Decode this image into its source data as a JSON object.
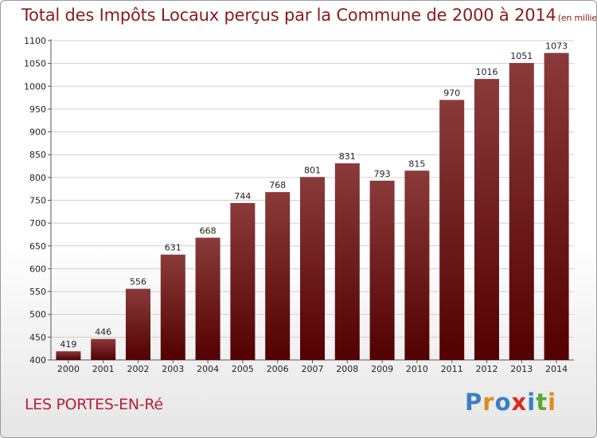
{
  "title": "Total des Impôts Locaux perçus par la Commune de 2000 à 2014",
  "title_unit": "(en milliers d'€)",
  "commune": "LES PORTES-EN-Ré",
  "logo": {
    "text": "Proxiti",
    "letters": [
      {
        "ch": "P",
        "color": "#3a7fc2"
      },
      {
        "ch": "r",
        "color": "#e08a1e"
      },
      {
        "ch": "o",
        "color": "#3a7fc2"
      },
      {
        "ch": "x",
        "color": "#d92a1c"
      },
      {
        "ch": "i",
        "color": "#3a7fc2"
      },
      {
        "ch": "t",
        "color": "#58a832"
      },
      {
        "ch": "i",
        "color": "#e08a1e"
      }
    ]
  },
  "colors": {
    "bar_top": "#8b3a3a",
    "bar_bottom": "#520000",
    "title": "#8b1a1a",
    "commune": "#b8203a"
  },
  "chart_data": {
    "type": "bar",
    "title": "Total des Impôts Locaux perçus par la Commune de 2000 à 2014",
    "xlabel": "",
    "ylabel": "",
    "categories": [
      "2000",
      "2001",
      "2002",
      "2003",
      "2004",
      "2005",
      "2006",
      "2007",
      "2008",
      "2009",
      "2010",
      "2011",
      "2012",
      "2013",
      "2014"
    ],
    "values": [
      419,
      446,
      556,
      631,
      668,
      744,
      768,
      801,
      831,
      793,
      815,
      970,
      1016,
      1051,
      1073
    ],
    "ylim": [
      400,
      1100
    ],
    "yticks": [
      400,
      450,
      500,
      550,
      600,
      650,
      700,
      750,
      800,
      850,
      900,
      950,
      1000,
      1050,
      1100
    ],
    "grid": "horizontal",
    "legend": "none"
  }
}
